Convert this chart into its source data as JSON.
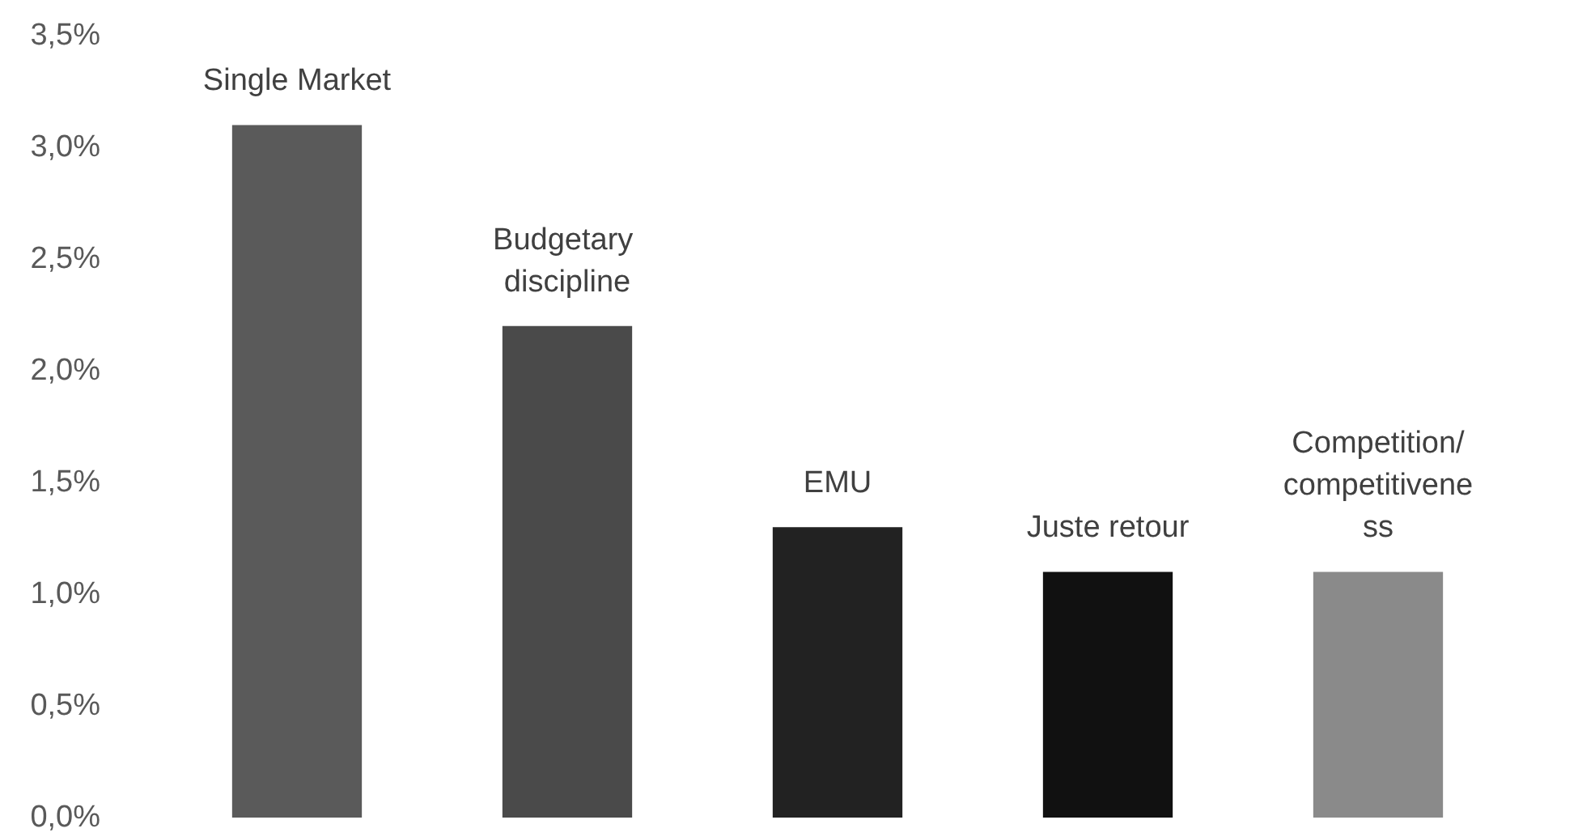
{
  "chart_data": {
    "type": "bar",
    "categories": [
      "Single Market",
      "Budgetary discipline",
      "EMU",
      "Juste retour",
      "Competition/competitiveness"
    ],
    "values": [
      3.1,
      2.2,
      1.3,
      1.1,
      1.1
    ],
    "colors": [
      "#5a5a5a",
      "#4a4a4a",
      "#222222",
      "#111111",
      "#8a8a8a"
    ],
    "ylim": [
      0,
      3.5
    ],
    "yticks": [
      {
        "value": 0,
        "label": "0,0%"
      },
      {
        "value": 0.5,
        "label": "0,5%"
      },
      {
        "value": 1,
        "label": "1,0%"
      },
      {
        "value": 1.5,
        "label": "1,5%"
      },
      {
        "value": 2,
        "label": "2,0%"
      },
      {
        "value": 2.5,
        "label": "2,5%"
      },
      {
        "value": 3,
        "label": "3,0%"
      },
      {
        "value": 3.5,
        "label": "3,5%"
      }
    ],
    "relative": false
  }
}
